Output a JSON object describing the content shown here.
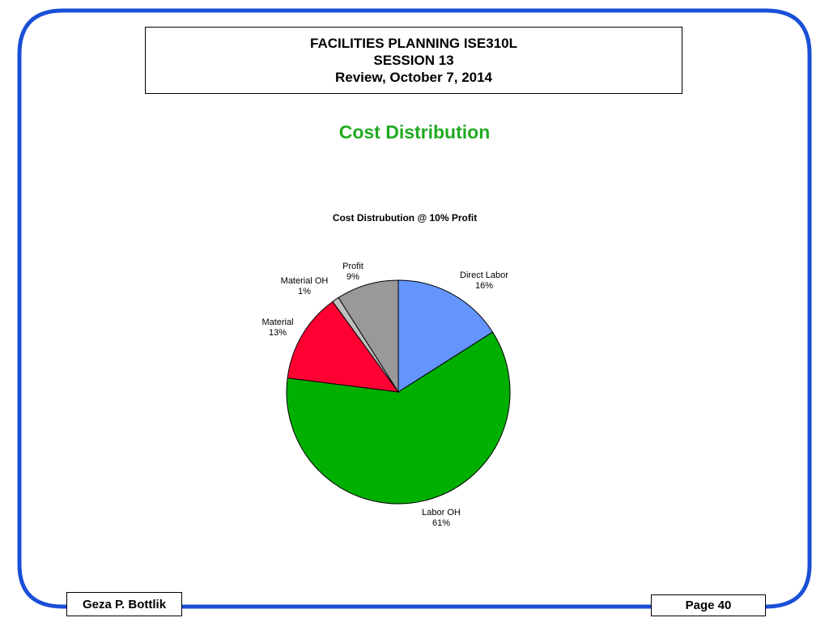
{
  "header": {
    "line1": "FACILITIES PLANNING ISE310L",
    "line2": "SESSION 13",
    "line3": "Review, October 7, 2014"
  },
  "slide_title": "Cost Distribution",
  "chart_data": {
    "type": "pie",
    "title": "Cost Distrubution  @ 10% Profit",
    "slices": [
      {
        "label": "Direct Labor",
        "percent_label": "16%",
        "value": 16,
        "color": "#6495ff"
      },
      {
        "label": "Labor OH",
        "percent_label": "61%",
        "value": 61,
        "color": "#00b000"
      },
      {
        "label": "Material",
        "percent_label": "13%",
        "value": 13,
        "color": "#ff0033"
      },
      {
        "label": "Material OH",
        "percent_label": "1%",
        "value": 1,
        "color": "#c0c0c0"
      },
      {
        "label": "Profit",
        "percent_label": "9%",
        "value": 9,
        "color": "#999999"
      }
    ]
  },
  "footer": {
    "author": "Geza P. Bottlik",
    "page": "Page 40"
  },
  "colors": {
    "frame": "#1a4fd6",
    "title": "#22aa22"
  }
}
